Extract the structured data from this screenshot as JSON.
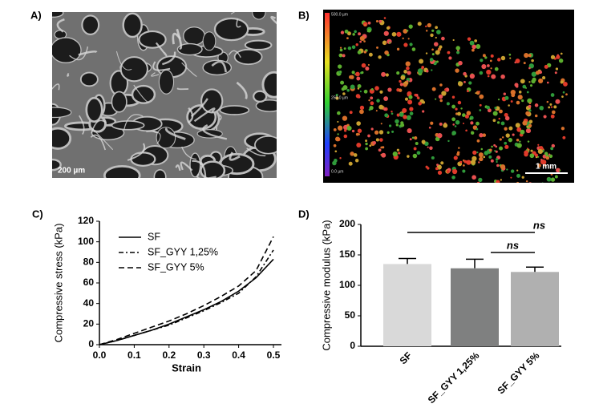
{
  "panels": {
    "a": "A)",
    "b": "B)",
    "c": "C)",
    "d": "D)"
  },
  "images": {
    "sem_scale": "200 µm",
    "confocal_scale": "1 mm",
    "colorbar": [
      "500.0 µm",
      "250.0 µm",
      "0.0 µm"
    ]
  },
  "chart_data": [
    {
      "type": "line",
      "x_label": "Strain",
      "y_label": "Compressive stress (kPa)",
      "x": [
        0,
        0.05,
        0.1,
        0.15,
        0.2,
        0.25,
        0.3,
        0.35,
        0.4,
        0.45,
        0.5
      ],
      "series": [
        {
          "name": "SF",
          "color": "#000000",
          "style": "solid",
          "values": [
            0,
            4,
            9,
            14,
            20,
            27,
            34,
            42,
            52,
            65,
            83
          ]
        },
        {
          "name": "SF_GYY 1,25%",
          "color": "#000000",
          "style": "dashdot",
          "values": [
            0,
            4,
            9,
            14,
            19,
            26,
            33,
            41,
            50,
            66,
            92
          ]
        },
        {
          "name": "SF_GYY 5%",
          "color": "#000000",
          "style": "dashed",
          "values": [
            0,
            5,
            11,
            17,
            23,
            30,
            38,
            47,
            57,
            72,
            105
          ]
        }
      ],
      "xlim": [
        0,
        0.5
      ],
      "ylim": [
        0,
        120
      ],
      "xticks": [
        {
          "value": 0,
          "label": "0.0"
        },
        0.1,
        0.2,
        0.3,
        0.4,
        0.5
      ],
      "yticks": [
        0,
        20,
        40,
        60,
        80,
        100,
        120
      ],
      "legend": "upper-left"
    },
    {
      "type": "bar",
      "y_label": "Compressive modulus (kPa)",
      "categories": [
        "SF",
        "SF_GYY 1,25%",
        "SF_GYY 5%"
      ],
      "values": [
        135,
        128,
        122
      ],
      "errors": [
        9,
        15,
        8
      ],
      "colors": [
        "#d9d9d9",
        "#7f8080",
        "#b0b0b0"
      ],
      "ylim": [
        0,
        200
      ],
      "yticks": [
        0,
        50,
        100,
        150,
        200
      ],
      "comparisons": [
        {
          "label": "ns",
          "between": [
            0,
            2
          ]
        },
        {
          "label": "ns",
          "between": [
            1,
            2
          ]
        }
      ]
    }
  ]
}
